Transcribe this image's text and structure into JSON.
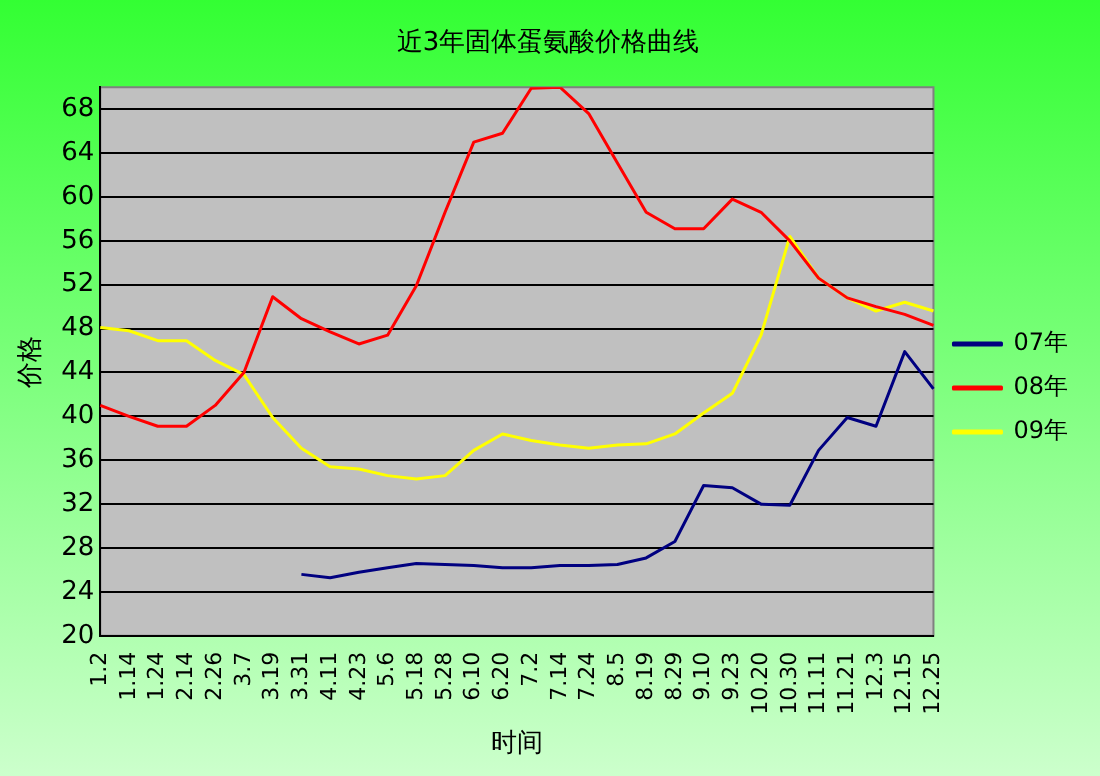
{
  "chart_data": {
    "type": "line",
    "title": "近3年固体蛋氨酸价格曲线",
    "xlabel": "时间",
    "ylabel": "价格",
    "categories": [
      "1.2",
      "1.14",
      "1.24",
      "2.14",
      "2.26",
      "3.7",
      "3.19",
      "3.31",
      "4.11",
      "4.23",
      "5.6",
      "5.18",
      "5.28",
      "6.10",
      "6.20",
      "7.2",
      "7.14",
      "7.24",
      "8.5",
      "8.19",
      "8.29",
      "9.10",
      "9.23",
      "10.20",
      "10.30",
      "11.11",
      "11.21",
      "12.3",
      "12.15",
      "12.25"
    ],
    "series": [
      {
        "name": "07年",
        "color": "#000080",
        "values": [
          null,
          null,
          null,
          null,
          null,
          null,
          null,
          25.6,
          25.3,
          25.8,
          26.2,
          26.6,
          26.5,
          26.4,
          26.2,
          26.2,
          26.4,
          26.4,
          26.5,
          27.1,
          28.6,
          33.7,
          33.5,
          32.0,
          31.9,
          36.9,
          39.9,
          39.1,
          45.9,
          42.5
        ]
      },
      {
        "name": "08年",
        "color": "#ff0000",
        "values": [
          41.0,
          40.0,
          39.1,
          39.1,
          41.0,
          44.0,
          50.9,
          48.9,
          47.7,
          46.6,
          47.4,
          51.9,
          58.6,
          65.0,
          65.8,
          69.9,
          70,
          67.6,
          63.1,
          58.6,
          57.1,
          57.1,
          59.8,
          58.6,
          56.0,
          52.6,
          50.8,
          50.0,
          49.3,
          48.3
        ]
      },
      {
        "name": "09年",
        "color": "#ffff00",
        "values": [
          48.1,
          47.8,
          46.9,
          46.9,
          45.1,
          43.8,
          39.9,
          37.1,
          35.4,
          35.2,
          34.6,
          34.3,
          34.6,
          36.9,
          38.4,
          37.8,
          37.4,
          37.1,
          37.4,
          37.5,
          38.4,
          40.3,
          42.1,
          47.4,
          56.4,
          52.6,
          50.8,
          49.6,
          50.4,
          49.6
        ]
      }
    ],
    "ylim": [
      20,
      70
    ],
    "yticks": [
      20,
      24,
      28,
      32,
      36,
      40,
      44,
      48,
      52,
      56,
      60,
      64,
      68
    ],
    "grid": "y",
    "legend": "right",
    "marker": "none",
    "line_style": "solid"
  }
}
